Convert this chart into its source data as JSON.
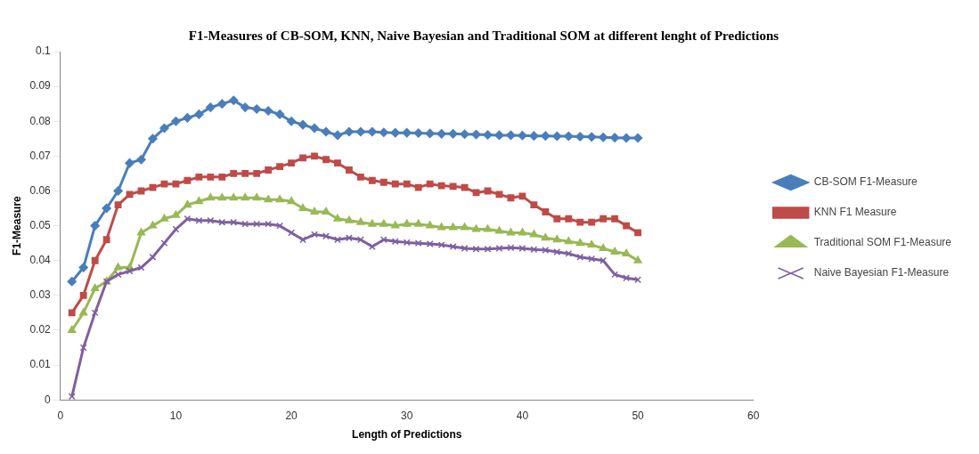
{
  "chart_data": {
    "type": "line",
    "title": "F1-Measures of CB-SOM, KNN, Naive Bayesian and Traditional SOM at different lenght of Predictions",
    "xlabel": "Length of Predictions",
    "ylabel": "F1-Measure",
    "x": [
      1,
      2,
      3,
      4,
      5,
      6,
      7,
      8,
      9,
      10,
      11,
      12,
      13,
      14,
      15,
      16,
      17,
      18,
      19,
      20,
      21,
      22,
      23,
      24,
      25,
      26,
      27,
      28,
      29,
      30,
      31,
      32,
      33,
      34,
      35,
      36,
      37,
      38,
      39,
      40,
      41,
      42,
      43,
      44,
      45,
      46,
      47,
      48,
      49,
      50
    ],
    "xlim": [
      0,
      60
    ],
    "xticks": [
      0,
      10,
      20,
      30,
      40,
      50,
      60
    ],
    "ylim": [
      0,
      0.1
    ],
    "yticks": [
      0,
      0.01,
      0.02,
      0.03,
      0.04,
      0.05,
      0.06,
      0.07,
      0.08,
      0.09,
      0.1
    ],
    "grid": false,
    "legend": "right",
    "series": [
      {
        "name": "CB-SOM F1-Measure",
        "color": "#4a7ebb",
        "marker": "diamond",
        "values": [
          0.034,
          0.038,
          0.05,
          0.055,
          0.06,
          0.068,
          0.069,
          0.075,
          0.078,
          0.08,
          0.081,
          0.082,
          0.084,
          0.085,
          0.086,
          0.084,
          0.0835,
          0.083,
          0.082,
          0.08,
          0.079,
          0.078,
          0.077,
          0.076,
          0.077,
          0.077,
          0.077,
          0.0768,
          0.0767,
          0.0767,
          0.0766,
          0.0765,
          0.0764,
          0.0764,
          0.0763,
          0.0762,
          0.0761,
          0.076,
          0.076,
          0.0759,
          0.0758,
          0.0758,
          0.0757,
          0.0757,
          0.0756,
          0.0755,
          0.0754,
          0.0753,
          0.0752,
          0.0752
        ]
      },
      {
        "name": "KNN F1 Measure",
        "color": "#be4b48",
        "marker": "square",
        "values": [
          0.025,
          0.03,
          0.04,
          0.046,
          0.056,
          0.059,
          0.06,
          0.061,
          0.062,
          0.062,
          0.063,
          0.064,
          0.064,
          0.064,
          0.065,
          0.065,
          0.065,
          0.066,
          0.067,
          0.068,
          0.0695,
          0.07,
          0.069,
          0.068,
          0.066,
          0.064,
          0.063,
          0.0625,
          0.062,
          0.062,
          0.061,
          0.062,
          0.0615,
          0.0613,
          0.061,
          0.0595,
          0.06,
          0.059,
          0.058,
          0.0585,
          0.056,
          0.054,
          0.052,
          0.052,
          0.051,
          0.051,
          0.052,
          0.052,
          0.05,
          0.048
        ]
      },
      {
        "name": "Traditional SOM F1-Measure",
        "color": "#98b954",
        "marker": "triangle",
        "values": [
          0.02,
          0.025,
          0.032,
          0.034,
          0.038,
          0.038,
          0.048,
          0.05,
          0.052,
          0.053,
          0.056,
          0.057,
          0.058,
          0.058,
          0.058,
          0.058,
          0.058,
          0.0575,
          0.0575,
          0.057,
          0.055,
          0.054,
          0.054,
          0.052,
          0.0515,
          0.051,
          0.0505,
          0.0505,
          0.05,
          0.0505,
          0.0505,
          0.05,
          0.0495,
          0.0495,
          0.0495,
          0.049,
          0.049,
          0.0485,
          0.048,
          0.048,
          0.0475,
          0.0465,
          0.046,
          0.0455,
          0.045,
          0.0445,
          0.0435,
          0.0425,
          0.042,
          0.04
        ]
      },
      {
        "name": "Naive Bayesian F1-Measure",
        "color": "#7d60a0",
        "marker": "cross",
        "values": [
          0.001,
          0.015,
          0.025,
          0.034,
          0.036,
          0.037,
          0.038,
          0.041,
          0.045,
          0.049,
          0.052,
          0.0515,
          0.0515,
          0.051,
          0.051,
          0.0505,
          0.0505,
          0.0505,
          0.05,
          0.048,
          0.046,
          0.0475,
          0.047,
          0.046,
          0.0465,
          0.046,
          0.044,
          0.046,
          0.0455,
          0.0452,
          0.045,
          0.0448,
          0.0445,
          0.044,
          0.0435,
          0.0433,
          0.0433,
          0.0435,
          0.0437,
          0.0435,
          0.0432,
          0.043,
          0.0425,
          0.042,
          0.041,
          0.0405,
          0.04,
          0.036,
          0.035,
          0.0345
        ]
      }
    ]
  }
}
